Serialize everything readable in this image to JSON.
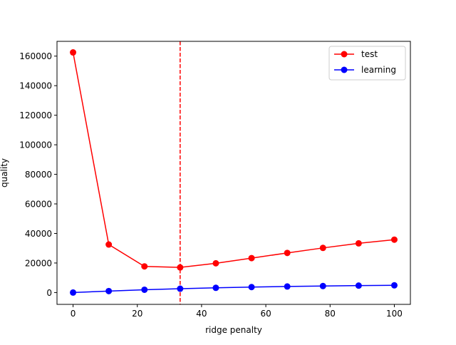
{
  "chart_data": {
    "type": "line",
    "title": "",
    "xlabel": "ridge penalty",
    "ylabel": "quality",
    "xlim": [
      -5,
      105
    ],
    "ylim": [
      -8000,
      170000
    ],
    "xticks": [
      0,
      20,
      40,
      60,
      80,
      100
    ],
    "yticks": [
      0,
      20000,
      40000,
      60000,
      80000,
      100000,
      120000,
      140000,
      160000
    ],
    "x": [
      0,
      11.11,
      22.22,
      33.33,
      44.44,
      55.56,
      66.67,
      77.78,
      88.89,
      100
    ],
    "series": [
      {
        "name": "test",
        "color": "#ff0000",
        "marker": "circle",
        "values": [
          162500,
          32500,
          17700,
          17000,
          19800,
          23300,
          26800,
          30200,
          33300,
          35800
        ]
      },
      {
        "name": "learning",
        "color": "#0000ff",
        "marker": "circle",
        "values": [
          0,
          1000,
          1900,
          2600,
          3200,
          3700,
          4100,
          4400,
          4700,
          4900
        ]
      }
    ],
    "vline": {
      "x": 33.33,
      "color": "#ff0000",
      "style": "dashed"
    },
    "legend": "top-right",
    "grid": false
  }
}
